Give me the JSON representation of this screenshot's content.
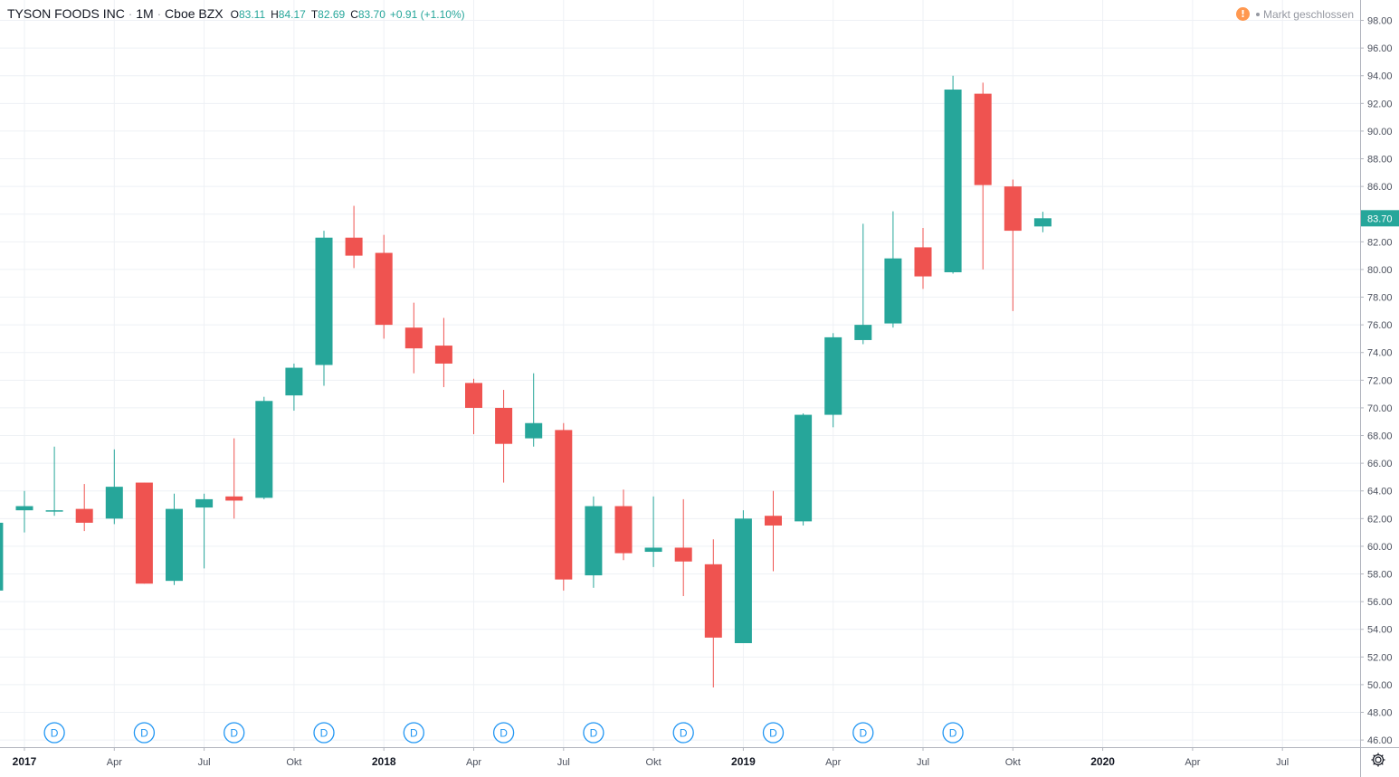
{
  "header": {
    "symbol": "TYSON FOODS INC",
    "interval": "1M",
    "exchange": "Cboe BZX",
    "open_label": "O",
    "open": "83.11",
    "high_label": "H",
    "high": "84.17",
    "low_label": "T",
    "low": "82.69",
    "close_label": "C",
    "close": "83.70",
    "change": "+0.91 (+1.10%)"
  },
  "market_status": {
    "icon": "warning-icon",
    "warning_glyph": "!",
    "text": "Markt geschlossen"
  },
  "colors": {
    "up": "#26a69a",
    "down": "#ef5350",
    "grid": "#eef1f5",
    "axis_text": "#4a4f5c",
    "price_label_bg": "#26a69a",
    "dividend_marker": "#2196f3"
  },
  "chart_data": {
    "type": "candlestick",
    "interval": "1M",
    "ylim": [
      45.4,
      99.6
    ],
    "y_ticks": [
      "46.00",
      "48.00",
      "50.00",
      "52.00",
      "54.00",
      "56.00",
      "58.00",
      "60.00",
      "62.00",
      "64.00",
      "66.00",
      "68.00",
      "70.00",
      "72.00",
      "74.00",
      "76.00",
      "78.00",
      "80.00",
      "82.00",
      "84.00",
      "86.00",
      "88.00",
      "90.00",
      "92.00",
      "94.00",
      "96.00",
      "98.00"
    ],
    "x_ticks": [
      {
        "label": "2017",
        "month": "2017-01",
        "bold": true
      },
      {
        "label": "Apr",
        "month": "2017-04",
        "bold": false
      },
      {
        "label": "Jul",
        "month": "2017-07",
        "bold": false
      },
      {
        "label": "Okt",
        "month": "2017-10",
        "bold": false
      },
      {
        "label": "2018",
        "month": "2018-01",
        "bold": true
      },
      {
        "label": "Apr",
        "month": "2018-04",
        "bold": false
      },
      {
        "label": "Jul",
        "month": "2018-07",
        "bold": false
      },
      {
        "label": "Okt",
        "month": "2018-10",
        "bold": false
      },
      {
        "label": "2019",
        "month": "2019-01",
        "bold": true
      },
      {
        "label": "Apr",
        "month": "2019-04",
        "bold": false
      },
      {
        "label": "Jul",
        "month": "2019-07",
        "bold": false
      },
      {
        "label": "Okt",
        "month": "2019-10",
        "bold": false
      },
      {
        "label": "2020",
        "month": "2020-01",
        "bold": true
      },
      {
        "label": "Apr",
        "month": "2020-04",
        "bold": false
      },
      {
        "label": "Jul",
        "month": "2020-07",
        "bold": false
      }
    ],
    "candles": [
      {
        "date": "2016-12",
        "open": 56.8,
        "high": 61.8,
        "low": 56.8,
        "close": 61.7
      },
      {
        "date": "2017-01",
        "open": 62.6,
        "high": 64.0,
        "low": 61.0,
        "close": 62.9
      },
      {
        "date": "2017-02",
        "open": 62.6,
        "high": 67.2,
        "low": 62.2,
        "close": 62.6
      },
      {
        "date": "2017-03",
        "open": 62.7,
        "high": 64.5,
        "low": 61.1,
        "close": 61.7
      },
      {
        "date": "2017-04",
        "open": 62.0,
        "high": 67.0,
        "low": 61.6,
        "close": 64.3
      },
      {
        "date": "2017-05",
        "open": 64.6,
        "high": 64.6,
        "low": 57.3,
        "close": 57.3
      },
      {
        "date": "2017-06",
        "open": 57.5,
        "high": 63.8,
        "low": 57.2,
        "close": 62.7
      },
      {
        "date": "2017-07",
        "open": 62.8,
        "high": 63.8,
        "low": 58.4,
        "close": 63.4
      },
      {
        "date": "2017-08",
        "open": 63.6,
        "high": 67.8,
        "low": 62.0,
        "close": 63.3
      },
      {
        "date": "2017-09",
        "open": 63.5,
        "high": 70.8,
        "low": 63.4,
        "close": 70.5
      },
      {
        "date": "2017-10",
        "open": 70.9,
        "high": 73.2,
        "low": 69.8,
        "close": 72.9
      },
      {
        "date": "2017-11",
        "open": 73.1,
        "high": 82.8,
        "low": 71.6,
        "close": 82.3
      },
      {
        "date": "2017-12",
        "open": 82.3,
        "high": 84.6,
        "low": 80.1,
        "close": 81.0
      },
      {
        "date": "2018-01",
        "open": 81.2,
        "high": 82.5,
        "low": 75.0,
        "close": 76.0
      },
      {
        "date": "2018-02",
        "open": 75.8,
        "high": 77.6,
        "low": 72.5,
        "close": 74.3
      },
      {
        "date": "2018-03",
        "open": 74.5,
        "high": 76.5,
        "low": 71.5,
        "close": 73.2
      },
      {
        "date": "2018-04",
        "open": 71.8,
        "high": 72.1,
        "low": 68.1,
        "close": 70.0
      },
      {
        "date": "2018-05",
        "open": 70.0,
        "high": 71.3,
        "low": 64.6,
        "close": 67.4
      },
      {
        "date": "2018-06",
        "open": 67.8,
        "high": 72.5,
        "low": 67.2,
        "close": 68.9
      },
      {
        "date": "2018-07",
        "open": 68.4,
        "high": 68.9,
        "low": 56.8,
        "close": 57.6
      },
      {
        "date": "2018-08",
        "open": 57.9,
        "high": 63.6,
        "low": 57.0,
        "close": 62.9
      },
      {
        "date": "2018-09",
        "open": 62.9,
        "high": 64.1,
        "low": 59.0,
        "close": 59.5
      },
      {
        "date": "2018-10",
        "open": 59.6,
        "high": 63.6,
        "low": 58.5,
        "close": 59.9
      },
      {
        "date": "2018-11",
        "open": 59.9,
        "high": 63.4,
        "low": 56.4,
        "close": 58.9
      },
      {
        "date": "2018-12",
        "open": 58.7,
        "high": 60.5,
        "low": 49.8,
        "close": 53.4
      },
      {
        "date": "2019-01",
        "open": 53.0,
        "high": 62.6,
        "low": 53.0,
        "close": 62.0
      },
      {
        "date": "2019-02",
        "open": 62.2,
        "high": 64.0,
        "low": 58.2,
        "close": 61.5
      },
      {
        "date": "2019-03",
        "open": 61.8,
        "high": 69.6,
        "low": 61.5,
        "close": 69.5
      },
      {
        "date": "2019-04",
        "open": 69.5,
        "high": 75.4,
        "low": 68.6,
        "close": 75.1
      },
      {
        "date": "2019-05",
        "open": 74.9,
        "high": 83.3,
        "low": 74.6,
        "close": 76.0
      },
      {
        "date": "2019-06",
        "open": 76.1,
        "high": 84.2,
        "low": 75.8,
        "close": 80.8
      },
      {
        "date": "2019-07",
        "open": 81.6,
        "high": 83.0,
        "low": 78.6,
        "close": 79.5
      },
      {
        "date": "2019-08",
        "open": 79.8,
        "high": 94.0,
        "low": 79.7,
        "close": 93.0
      },
      {
        "date": "2019-09",
        "open": 92.7,
        "high": 93.5,
        "low": 80.0,
        "close": 86.1
      },
      {
        "date": "2019-10",
        "open": 86.0,
        "high": 86.5,
        "low": 77.0,
        "close": 82.8
      },
      {
        "date": "2019-11",
        "open": 83.11,
        "high": 84.17,
        "low": 82.69,
        "close": 83.7
      }
    ],
    "last_price": "83.70",
    "dividend_markers": {
      "label": "D",
      "months": [
        "2017-02",
        "2017-05",
        "2017-08",
        "2017-11",
        "2018-02",
        "2018-05",
        "2018-08",
        "2018-11",
        "2019-02",
        "2019-05",
        "2019-08"
      ]
    }
  }
}
